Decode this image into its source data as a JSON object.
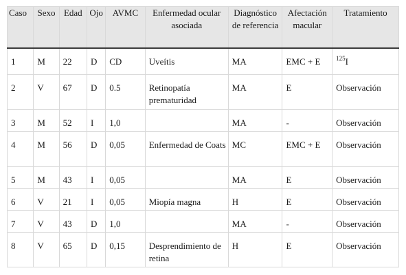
{
  "table": {
    "headers": [
      "Caso",
      "Sexo",
      "Edad",
      "Ojo",
      "AVMC",
      "Enfermedad ocular asociada",
      "Diagnóstico de referencia",
      "Afectación macular",
      "Tratamiento"
    ],
    "rows": [
      {
        "caso": "1",
        "sexo": "M",
        "edad": "22",
        "ojo": "D",
        "avmc": "CD",
        "enfermedad": "Uveítis",
        "diagnostico": "MA",
        "afectacion": "EMC + E",
        "tratamiento_sup": "125",
        "tratamiento": "I"
      },
      {
        "caso": "2",
        "sexo": "V",
        "edad": "67",
        "ojo": "D",
        "avmc": "0.5",
        "enfermedad": "Retinopatía prematuridad",
        "diagnostico": "MA",
        "afectacion": "E",
        "tratamiento_sup": "",
        "tratamiento": "Observación"
      },
      {
        "caso": "3",
        "sexo": "M",
        "edad": "52",
        "ojo": "I",
        "avmc": "1,0",
        "enfermedad": "",
        "diagnostico": "MA",
        "afectacion": "-",
        "tratamiento_sup": "",
        "tratamiento": "Observación"
      },
      {
        "caso": "4",
        "sexo": "M",
        "edad": "56",
        "ojo": "D",
        "avmc": "0,05",
        "enfermedad": "Enfermedad de Coats",
        "diagnostico": "MC",
        "afectacion": "EMC + E",
        "tratamiento_sup": "",
        "tratamiento": "Observación"
      },
      {
        "caso": "5",
        "sexo": "M",
        "edad": "43",
        "ojo": "I",
        "avmc": "0,05",
        "enfermedad": "",
        "diagnostico": "MA",
        "afectacion": "E",
        "tratamiento_sup": "",
        "tratamiento": "Observación"
      },
      {
        "caso": "6",
        "sexo": "V",
        "edad": "21",
        "ojo": "I",
        "avmc": "0,05",
        "enfermedad": "Miopía magna",
        "diagnostico": "H",
        "afectacion": "E",
        "tratamiento_sup": "",
        "tratamiento": "Observación"
      },
      {
        "caso": "7",
        "sexo": "V",
        "edad": "43",
        "ojo": "D",
        "avmc": "1,0",
        "enfermedad": "",
        "diagnostico": "MA",
        "afectacion": "-",
        "tratamiento_sup": "",
        "tratamiento": "Observación"
      },
      {
        "caso": "8",
        "sexo": "V",
        "edad": "65",
        "ojo": "D",
        "avmc": "0,15",
        "enfermedad": "Desprendimiento de retina",
        "diagnostico": "H",
        "afectacion": "E",
        "tratamiento_sup": "",
        "tratamiento": "Observación"
      }
    ]
  },
  "colors": {
    "header_background": "#e6e6e6",
    "grid": "#d9d9d9",
    "header_rule": "#3a3a3a"
  }
}
